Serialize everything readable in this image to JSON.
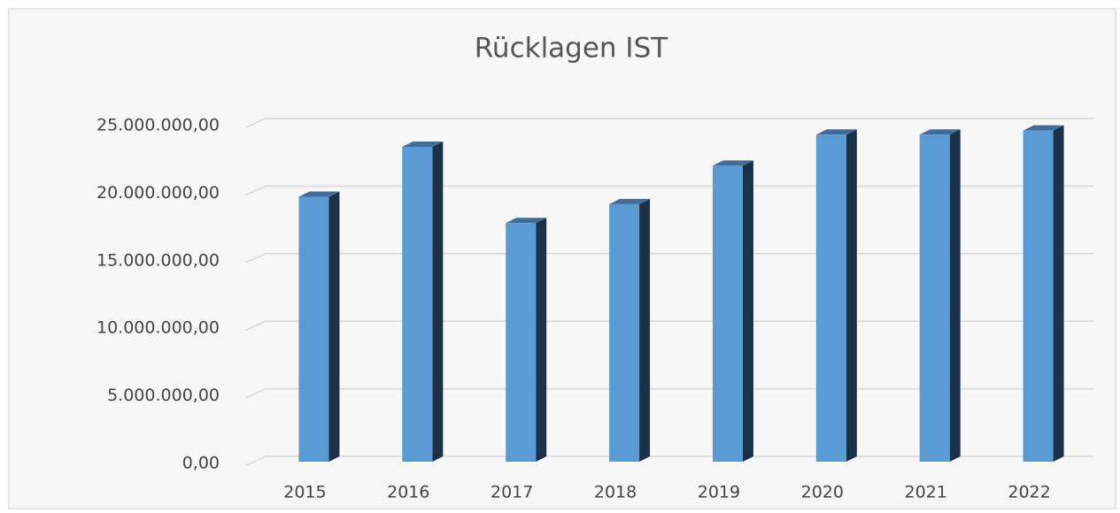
{
  "chart_data": {
    "type": "bar3d",
    "title": "Rücklagen IST",
    "categories": [
      "2015",
      "2016",
      "2017",
      "2018",
      "2019",
      "2020",
      "2021",
      "2022"
    ],
    "values": [
      19600000,
      23300000,
      17650000,
      19050000,
      21900000,
      24200000,
      24200000,
      24500000
    ],
    "color": "#5b9bd5",
    "ylim": [
      0,
      25000000
    ],
    "yticks": [
      {
        "value": 0,
        "label": "0,00"
      },
      {
        "value": 5000000,
        "label": "5.000.000,00"
      },
      {
        "value": 10000000,
        "label": "10.000.000,00"
      },
      {
        "value": 15000000,
        "label": "15.000.000,00"
      },
      {
        "value": 20000000,
        "label": "20.000.000,00"
      },
      {
        "value": 25000000,
        "label": "25.000.000,00"
      }
    ],
    "grid": true
  }
}
